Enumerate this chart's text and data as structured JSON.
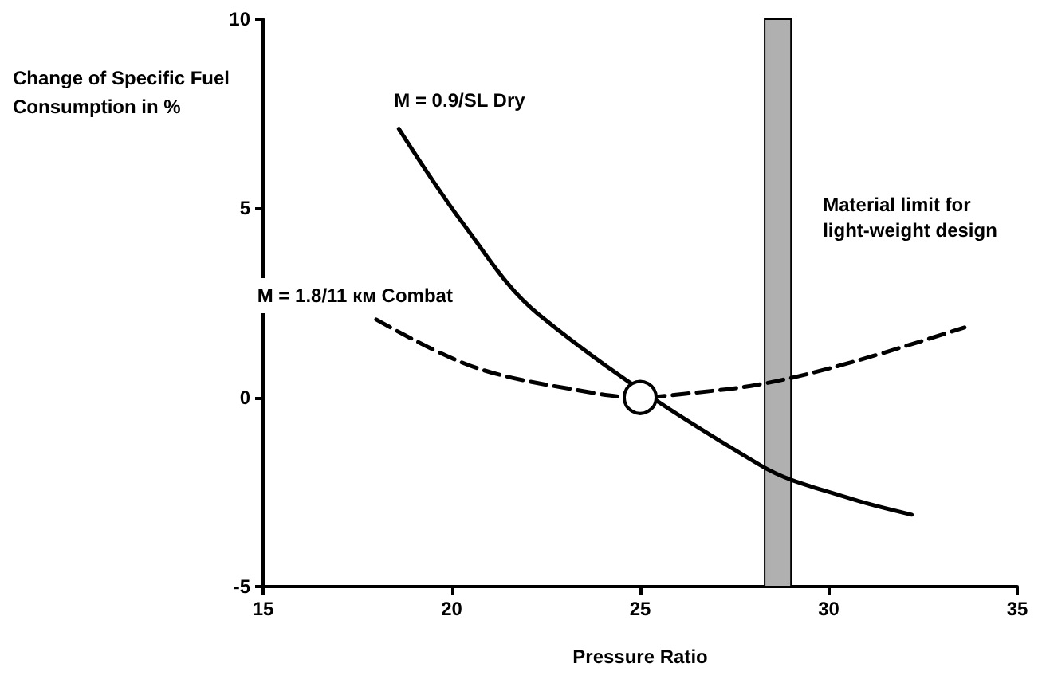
{
  "chart_data": {
    "type": "line",
    "xlabel": "Pressure Ratio",
    "ylabel": "Change of Specific Fuel Consumption in %",
    "xlim": [
      15,
      35
    ],
    "xticks": [
      15,
      20,
      25,
      30,
      35
    ],
    "ylim": [
      -5,
      10
    ],
    "yticks": [
      -5,
      0,
      5,
      10
    ],
    "grid": false,
    "legend": false,
    "series": [
      {
        "name": "M = 0.9/SL Dry",
        "color": "#000000",
        "line_style": "solid",
        "marker": "none",
        "x": [
          18.6,
          20.3,
          22.3,
          28.2,
          30.5,
          32.2
        ],
        "values": [
          7.1,
          4.6,
          2.2,
          -1.8,
          -2.65,
          -3.1
        ]
      },
      {
        "name": "M = 1.8/11 км Combat",
        "color": "#000000",
        "line_style": "dashed",
        "marker": "none",
        "x": [
          18,
          20.6,
          23.7,
          25,
          26.2,
          28.2,
          30.5,
          33.6
        ],
        "values": [
          2.06,
          0.8,
          0.13,
          0,
          0.1,
          0.35,
          0.9,
          1.85
        ]
      },
      {
        "type": "scatter",
        "color": "#ffffff",
        "marker": "circle",
        "x": [
          25
        ],
        "values": [
          0
        ]
      }
    ],
    "bands": [
      {
        "axis": "x",
        "from": 28.3,
        "to": 29.0,
        "label": "Material limit for\nlight-weight design",
        "color": "#b0b0b0"
      }
    ]
  }
}
